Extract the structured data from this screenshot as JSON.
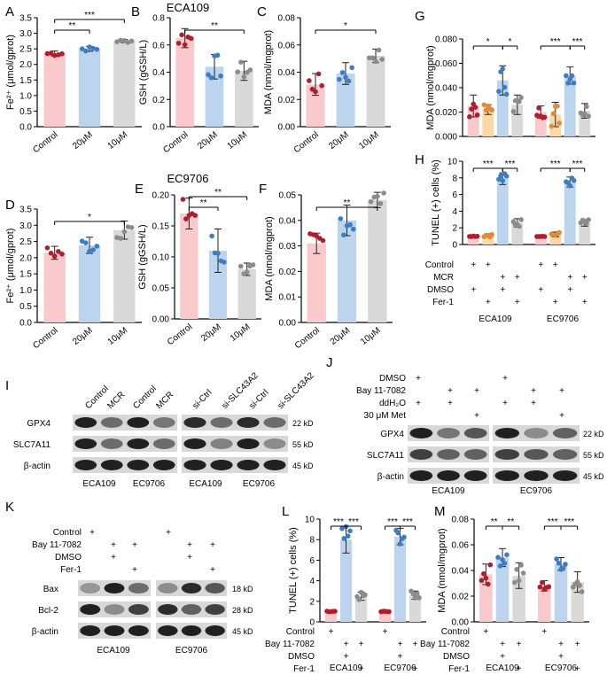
{
  "figure": {
    "panel_titles": {
      "top": "ECA109",
      "mid": "EC9706"
    },
    "colors": {
      "control": "#f9c9cc",
      "m20": "#bcd4ee",
      "m10": "#d9d9d9",
      "orange": "#fbd8a8",
      "dot_red": "#b01e2e",
      "dot_blue": "#3d7dc4",
      "dot_grey": "#8c8c8c",
      "dot_orange": "#e08a3a"
    }
  },
  "chart_data": [
    {
      "id": "A",
      "type": "bar",
      "title": "",
      "ylabel": "Fe²⁺ (μmol/gprot)",
      "categories": [
        "Control",
        "20μM",
        "10μM"
      ],
      "values": [
        2.35,
        2.5,
        2.75
      ],
      "errors": [
        0.08,
        0.08,
        0.05
      ],
      "ylim": [
        0,
        3.5
      ],
      "yticks": [
        "0.0",
        "0.5",
        "1.0",
        "1.5",
        "2.0",
        "2.5",
        "3.0",
        "3.5"
      ],
      "sig": [
        {
          "a": 0,
          "b": 1,
          "label": "**"
        },
        {
          "a": 0,
          "b": 2,
          "label": "***"
        }
      ]
    },
    {
      "id": "B",
      "type": "bar",
      "title": "",
      "ylabel": "GSH (gGSH/L)",
      "categories": [
        "Control",
        "20μM",
        "10μM"
      ],
      "values": [
        0.65,
        0.44,
        0.41
      ],
      "errors": [
        0.07,
        0.09,
        0.07
      ],
      "ylim": [
        0,
        0.8
      ],
      "yticks": [
        "0.0",
        "0.2",
        "0.4",
        "0.6",
        "0.8"
      ],
      "sig": [
        {
          "a": 0,
          "b": 2,
          "label": "**"
        }
      ]
    },
    {
      "id": "C",
      "type": "bar",
      "title": "",
      "ylabel": "MDA (nmol/mgprot)",
      "categories": [
        "Control",
        "20μM",
        "10μM"
      ],
      "values": [
        0.031,
        0.039,
        0.052
      ],
      "errors": [
        0.008,
        0.008,
        0.005
      ],
      "ylim": [
        0,
        0.08
      ],
      "yticks": [
        "0.00",
        "0.02",
        "0.04",
        "0.06",
        "0.08"
      ],
      "sig": [
        {
          "a": 0,
          "b": 2,
          "label": "*"
        }
      ]
    },
    {
      "id": "D",
      "type": "bar",
      "title": "",
      "ylabel": "Fe²⁺ (μmol/gprot)",
      "categories": [
        "Control",
        "20μM",
        "10μM"
      ],
      "values": [
        2.15,
        2.38,
        2.85
      ],
      "errors": [
        0.2,
        0.25,
        0.28
      ],
      "ylim": [
        0,
        3.5
      ],
      "yticks": [
        "0.0",
        "0.5",
        "1.0",
        "1.5",
        "2.0",
        "2.5",
        "3.0",
        "3.5"
      ],
      "sig": [
        {
          "a": 0,
          "b": 2,
          "label": "*"
        }
      ]
    },
    {
      "id": "E",
      "type": "bar",
      "title": "",
      "ylabel": "GSH (gGSH/L)",
      "categories": [
        "Control",
        "20μM",
        "10μM"
      ],
      "values": [
        0.17,
        0.11,
        0.08
      ],
      "errors": [
        0.025,
        0.035,
        0.01
      ],
      "ylim": [
        0,
        0.2
      ],
      "yticks": [
        "0.00",
        "0.05",
        "0.10",
        "0.15",
        "0.20"
      ],
      "sig": [
        {
          "a": 0,
          "b": 1,
          "label": "**"
        },
        {
          "a": 0,
          "b": 2,
          "label": "**"
        }
      ]
    },
    {
      "id": "F",
      "type": "bar",
      "title": "",
      "ylabel": "MDA (nmol/mgprot)",
      "categories": [
        "Control",
        "20μM",
        "10μM"
      ],
      "values": [
        0.031,
        0.04,
        0.048
      ],
      "errors": [
        0.004,
        0.006,
        0.003
      ],
      "ylim": [
        0,
        0.05
      ],
      "yticks": [
        "0.00",
        "0.01",
        "0.02",
        "0.03",
        "0.04",
        "0.05"
      ],
      "sig": [
        {
          "a": 0,
          "b": 2,
          "label": "**"
        }
      ]
    },
    {
      "id": "G",
      "type": "bar",
      "title": "",
      "ylabel": "MDA (nmol/mgprot)",
      "categories": [
        "1",
        "2",
        "3",
        "4",
        "5",
        "6",
        "7",
        "8"
      ],
      "values": [
        0.025,
        0.022,
        0.046,
        0.026,
        0.02,
        0.018,
        0.05,
        0.021
      ],
      "errors": [
        0.009,
        0.004,
        0.012,
        0.008,
        0.005,
        0.01,
        0.007,
        0.006
      ],
      "ylim": [
        0,
        0.08
      ],
      "yticks": [
        "0.000",
        "0.020",
        "0.040",
        "0.060",
        "0.080"
      ],
      "sig": [
        {
          "a": 0,
          "b": 2,
          "label": "*"
        },
        {
          "a": 2,
          "b": 3,
          "label": "*"
        },
        {
          "a": 4,
          "b": 6,
          "label": "***"
        },
        {
          "a": 6,
          "b": 7,
          "label": "***"
        }
      ]
    },
    {
      "id": "H",
      "type": "bar",
      "title": "",
      "ylabel": "TUNEL (+) cells (%)",
      "categories": [
        "1",
        "2",
        "3",
        "4",
        "5",
        "6",
        "7",
        "8"
      ],
      "values": [
        1,
        1.1,
        7.9,
        2.6,
        1,
        1.2,
        7.5,
        2.6
      ],
      "errors": [
        0.05,
        0.2,
        0.7,
        0.5,
        0.05,
        0.3,
        0.6,
        0.4
      ],
      "ylim": [
        0,
        10
      ],
      "yticks": [
        "0",
        "2",
        "4",
        "6",
        "8",
        "10"
      ],
      "sig": [
        {
          "a": 0,
          "b": 2,
          "label": "***"
        },
        {
          "a": 2,
          "b": 3,
          "label": "***"
        },
        {
          "a": 4,
          "b": 6,
          "label": "***"
        },
        {
          "a": 6,
          "b": 7,
          "label": "***"
        }
      ]
    },
    {
      "id": "L",
      "type": "bar",
      "title": "",
      "ylabel": "TUNEL (+) cells (%)",
      "categories": [
        "1",
        "2",
        "3",
        "4",
        "5",
        "6"
      ],
      "values": [
        1,
        8,
        2.5,
        1,
        8.3,
        2.6
      ],
      "errors": [
        0.05,
        1.3,
        0.4,
        0.05,
        0.8,
        0.4
      ],
      "ylim": [
        0,
        10
      ],
      "yticks": [
        "0",
        "2",
        "4",
        "6",
        "8",
        "10"
      ],
      "sig": [
        {
          "a": 0,
          "b": 1,
          "label": "***"
        },
        {
          "a": 1,
          "b": 2,
          "label": "***"
        },
        {
          "a": 3,
          "b": 4,
          "label": "***"
        },
        {
          "a": 4,
          "b": 5,
          "label": "***"
        }
      ]
    },
    {
      "id": "M",
      "type": "bar",
      "title": "",
      "ylabel": "MDA (nmol/mgprot)",
      "categories": [
        "1",
        "2",
        "3",
        "4",
        "5",
        "6"
      ],
      "values": [
        0.037,
        0.05,
        0.036,
        0.028,
        0.045,
        0.031
      ],
      "errors": [
        0.008,
        0.007,
        0.01,
        0.004,
        0.005,
        0.008
      ],
      "ylim": [
        0,
        0.08
      ],
      "yticks": [
        "0.00",
        "0.02",
        "0.04",
        "0.06",
        "0.08"
      ],
      "sig": [
        {
          "a": 0,
          "b": 1,
          "label": "**"
        },
        {
          "a": 1,
          "b": 2,
          "label": "**"
        },
        {
          "a": 3,
          "b": 4,
          "label": "***"
        },
        {
          "a": 4,
          "b": 5,
          "label": "***"
        }
      ]
    }
  ],
  "treatments": {
    "G_H": {
      "rows": [
        "Control",
        "MCR",
        "DMSO",
        "Fer-1"
      ],
      "groups": [
        "ECA109",
        "EC9706"
      ],
      "marks": [
        [
          1,
          1,
          0,
          0,
          1,
          1,
          0,
          0
        ],
        [
          0,
          0,
          1,
          1,
          0,
          0,
          1,
          1
        ],
        [
          1,
          0,
          1,
          0,
          1,
          0,
          1,
          0
        ],
        [
          0,
          1,
          0,
          1,
          0,
          1,
          0,
          1
        ]
      ]
    },
    "L_M": {
      "rows": [
        "Control",
        "Bay 11-7082",
        "DMSO",
        "Fer-1"
      ],
      "groups": [
        "ECA109",
        "EC9706"
      ],
      "marks": [
        [
          1,
          0,
          0,
          1,
          0,
          0
        ],
        [
          0,
          1,
          1,
          0,
          1,
          1
        ],
        [
          0,
          1,
          0,
          0,
          1,
          0
        ],
        [
          0,
          0,
          1,
          0,
          0,
          1
        ]
      ]
    }
  },
  "blots": {
    "I": {
      "lanes": [
        "Control",
        "MCR",
        "Control",
        "MCR",
        "si-Ctrl",
        "si-SLC43A2",
        "si-Ctrl",
        "si-SLC43A2"
      ],
      "proteins": [
        "GPX4",
        "SLC7A11",
        "β-actin"
      ],
      "kd": [
        "22 kD",
        "55 kD",
        "45 kD"
      ],
      "groups": [
        "ECA109",
        "EC9706",
        "ECA109",
        "EC9706"
      ]
    },
    "J": {
      "rows": [
        "DMSO",
        "Bay 11-7082",
        "ddH₂O",
        "30 μM Met"
      ],
      "marks": [
        [
          1,
          0,
          0,
          1,
          0,
          0
        ],
        [
          0,
          1,
          1,
          0,
          1,
          1
        ],
        [
          1,
          1,
          0,
          1,
          1,
          0
        ],
        [
          0,
          0,
          1,
          0,
          0,
          1
        ]
      ],
      "proteins": [
        "GPX4",
        "SLC7A11",
        "β-actin"
      ],
      "kd": [
        "22 kD",
        "55 kD",
        "45 kD"
      ],
      "groups": [
        "ECA109",
        "EC9706"
      ]
    },
    "K": {
      "rows": [
        "Control",
        "Bay 11-7082",
        "DMSO",
        "Fer-1"
      ],
      "marks": [
        [
          1,
          0,
          0,
          1,
          0,
          0
        ],
        [
          0,
          1,
          1,
          0,
          1,
          1
        ],
        [
          0,
          1,
          0,
          0,
          1,
          0
        ],
        [
          0,
          0,
          1,
          0,
          0,
          1
        ]
      ],
      "proteins": [
        "Bax",
        "Bcl-2",
        "β-actin"
      ],
      "kd": [
        "18 kD",
        "28 kD",
        "45 kD"
      ],
      "groups": [
        "ECA109",
        "EC9706"
      ]
    }
  },
  "panel_letters": [
    "A",
    "B",
    "C",
    "D",
    "E",
    "F",
    "G",
    "H",
    "I",
    "J",
    "K",
    "L",
    "M"
  ]
}
